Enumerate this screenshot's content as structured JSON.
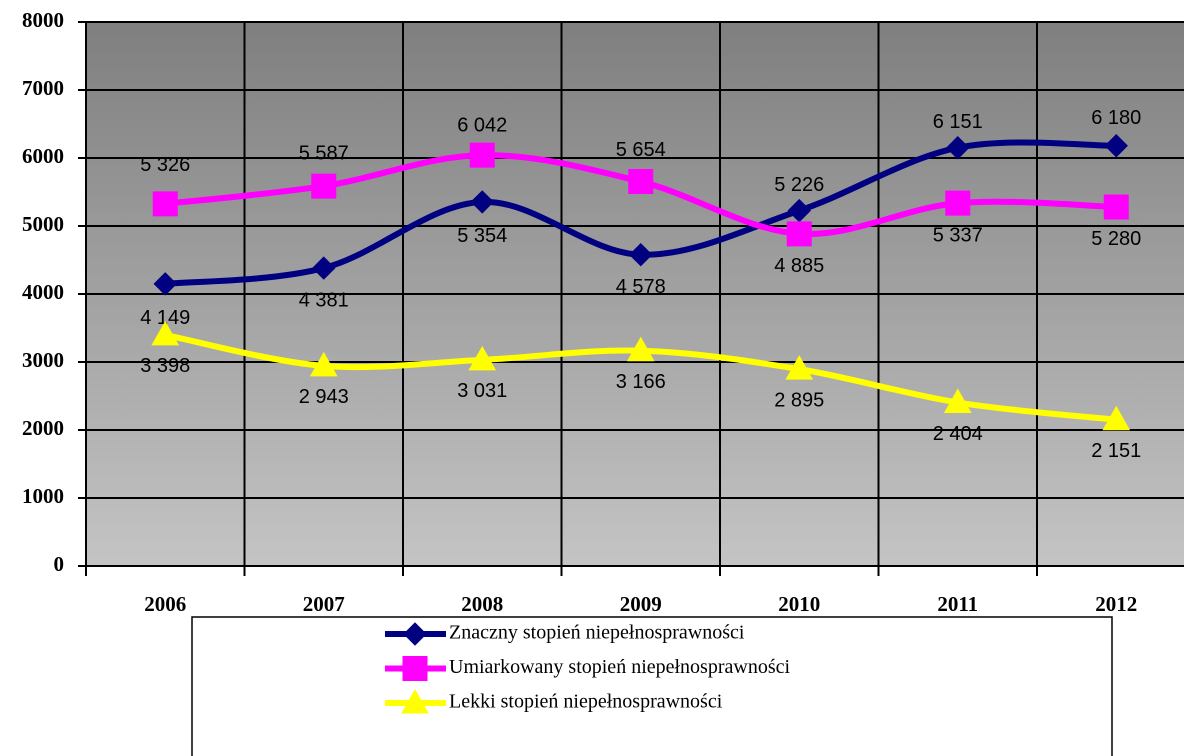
{
  "chart_data": {
    "type": "line",
    "categories": [
      "2006",
      "2007",
      "2008",
      "2009",
      "2010",
      "2011",
      "2012"
    ],
    "series": [
      {
        "name": "Znaczny stopień niepełnosprawności",
        "color": "#000080",
        "marker": "diamond",
        "values": [
          4149,
          4381,
          5354,
          4578,
          5226,
          6151,
          6180
        ],
        "value_labels": [
          "4 149",
          "4 381",
          "5 354",
          "4 578",
          "5 226",
          "6 151",
          "6 180"
        ]
      },
      {
        "name": "Umiarkowany stopień niepełnosprawności",
        "color": "#ff00ff",
        "marker": "square",
        "values": [
          5326,
          5587,
          6042,
          5654,
          4885,
          5337,
          5280
        ],
        "value_labels": [
          "5 326",
          "5 587",
          "6 042",
          "5 654",
          "4 885",
          "5 337",
          "5 280"
        ]
      },
      {
        "name": "Lekki stopień niepełnosprawności",
        "color": "#ffff00",
        "marker": "triangle",
        "values": [
          3398,
          2943,
          3031,
          3166,
          2895,
          2404,
          2151
        ],
        "value_labels": [
          "3 398",
          "2 943",
          "3 031",
          "3 166",
          "2 895",
          "2 404",
          "2 151"
        ]
      }
    ],
    "ylim": [
      0,
      8000
    ],
    "yticks": [
      0,
      1000,
      2000,
      3000,
      4000,
      5000,
      6000,
      7000,
      8000
    ],
    "grid": true,
    "legend": "bottom"
  }
}
